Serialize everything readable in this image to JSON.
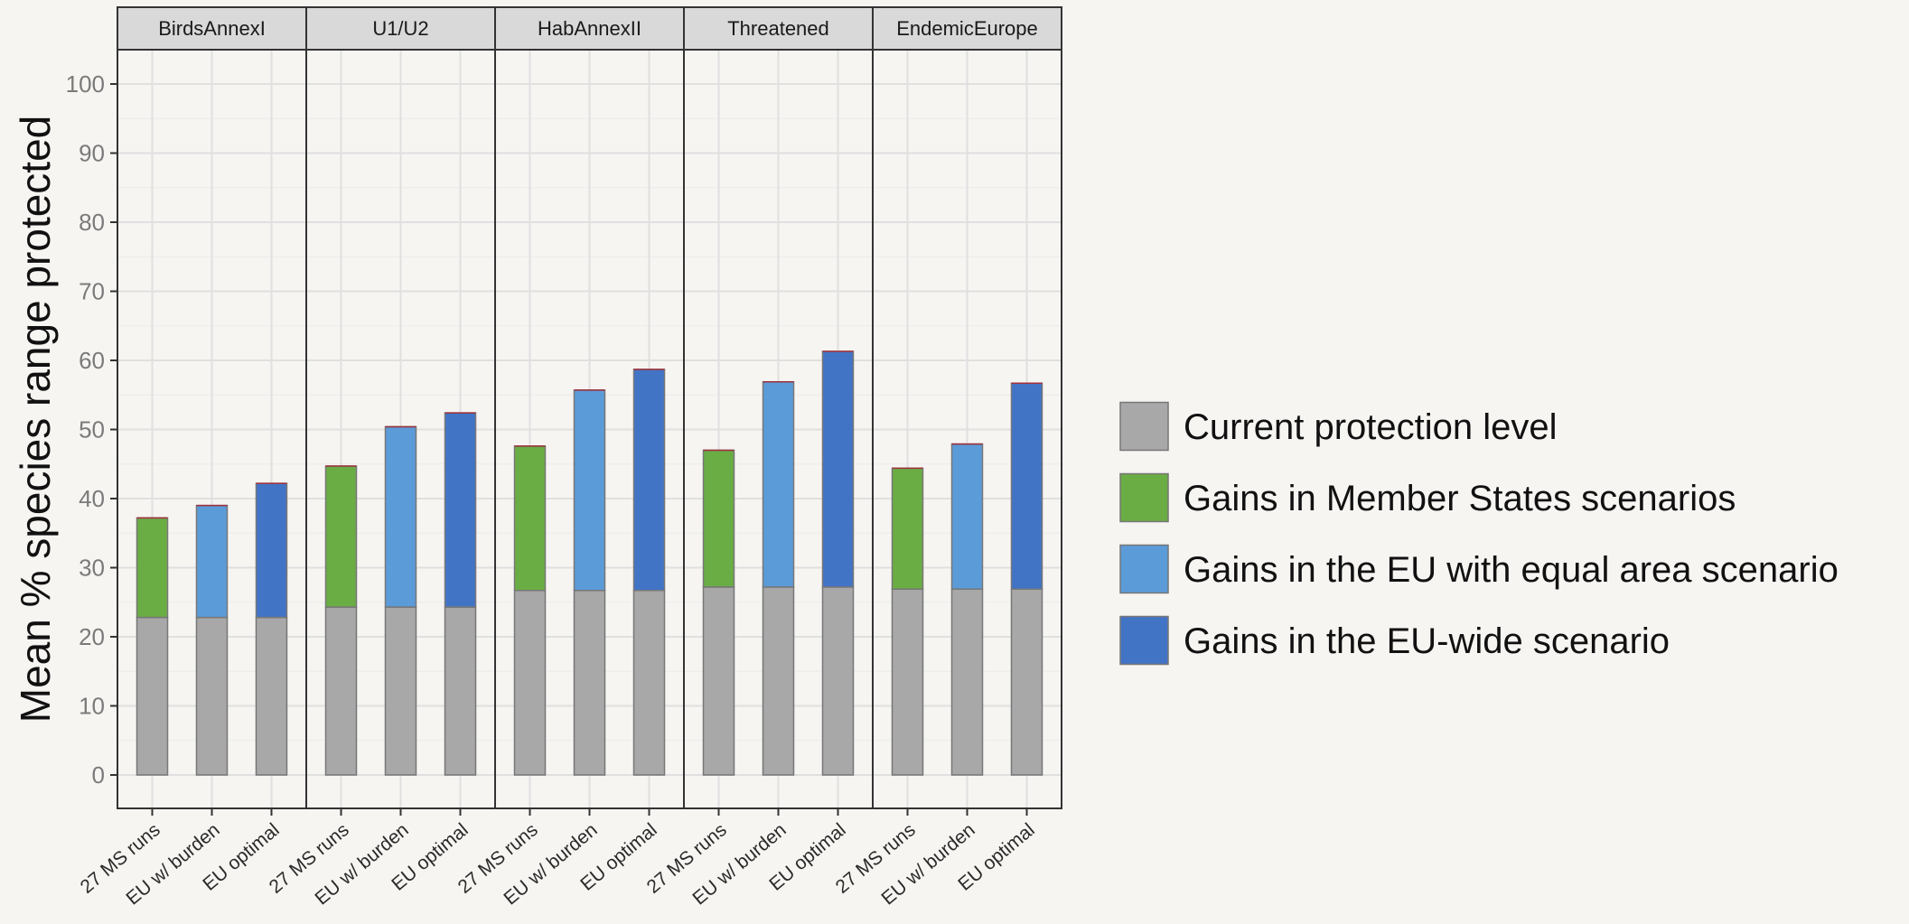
{
  "chart_data": {
    "type": "bar",
    "stacked": true,
    "ylabel": "Mean % species range protected",
    "ylim": [
      0,
      100
    ],
    "yticks": [
      "0",
      "10",
      "20",
      "30",
      "40",
      "50",
      "60",
      "70",
      "80",
      "90",
      "100"
    ],
    "grid": true,
    "legend_position": "right",
    "panels": [
      {
        "name": "BirdsAnnexI",
        "categories": [
          "27 MS runs",
          "EU w/ burden",
          "EU optimal"
        ],
        "base": [
          22.8,
          22.8,
          22.8
        ],
        "gain": [
          14.4,
          16.2,
          19.4
        ],
        "gain_type": [
          "ms",
          "eq",
          "wide"
        ]
      },
      {
        "name": "U1/U2",
        "categories": [
          "27 MS runs",
          "EU w/ burden",
          "EU optimal"
        ],
        "base": [
          24.3,
          24.3,
          24.3
        ],
        "gain": [
          20.4,
          26.1,
          28.1
        ],
        "gain_type": [
          "ms",
          "eq",
          "wide"
        ]
      },
      {
        "name": "HabAnnexII",
        "categories": [
          "27 MS runs",
          "EU w/ burden",
          "EU optimal"
        ],
        "base": [
          26.7,
          26.7,
          26.7
        ],
        "gain": [
          20.9,
          29.0,
          32.0
        ],
        "gain_type": [
          "ms",
          "eq",
          "wide"
        ]
      },
      {
        "name": "Threatened",
        "categories": [
          "27 MS runs",
          "EU w/ burden",
          "EU optimal"
        ],
        "base": [
          27.2,
          27.2,
          27.2
        ],
        "gain": [
          19.8,
          29.7,
          34.1
        ],
        "gain_type": [
          "ms",
          "eq",
          "wide"
        ]
      },
      {
        "name": "EndemicEurope",
        "categories": [
          "27 MS runs",
          "EU w/ burden",
          "EU optimal"
        ],
        "base": [
          26.9,
          26.9,
          26.9
        ],
        "gain": [
          17.5,
          21.0,
          29.8
        ],
        "gain_type": [
          "ms",
          "eq",
          "wide"
        ]
      }
    ],
    "legend": [
      {
        "key": "base",
        "label": "Current protection level",
        "color": "#a8a8a8"
      },
      {
        "key": "ms",
        "label": "Gains in Member States scenarios",
        "color": "#6aad45"
      },
      {
        "key": "eq",
        "label": "Gains in the EU with equal area scenario",
        "color": "#5b9bd8"
      },
      {
        "key": "wide",
        "label": "Gains in the EU-wide scenario",
        "color": "#4274c6"
      }
    ]
  }
}
